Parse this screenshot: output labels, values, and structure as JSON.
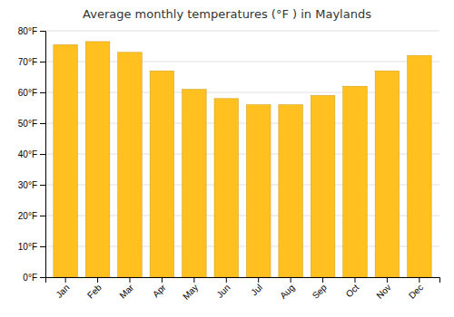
{
  "chart_data": {
    "type": "bar",
    "title": "Average monthly temperatures (°F ) in Maylands",
    "categories": [
      "Jan",
      "Feb",
      "Mar",
      "Apr",
      "May",
      "Jun",
      "Jul",
      "Aug",
      "Sep",
      "Oct",
      "Nov",
      "Dec"
    ],
    "values": [
      75.5,
      76.5,
      73,
      67,
      61,
      58,
      56,
      56,
      59,
      62,
      67,
      72
    ],
    "color": "#FFC020",
    "ylim": [
      0,
      80
    ],
    "yticks": [
      {
        "value": 0,
        "label": "0°F"
      },
      {
        "value": 10,
        "label": "10°F"
      },
      {
        "value": 20,
        "label": "20°F"
      },
      {
        "value": 30,
        "label": "30°F"
      },
      {
        "value": 40,
        "label": "40°F"
      },
      {
        "value": 50,
        "label": "50°F"
      },
      {
        "value": 60,
        "label": "60°F"
      },
      {
        "value": 70,
        "label": "70°F"
      },
      {
        "value": 80,
        "label": "80°F"
      }
    ],
    "grid": true
  }
}
